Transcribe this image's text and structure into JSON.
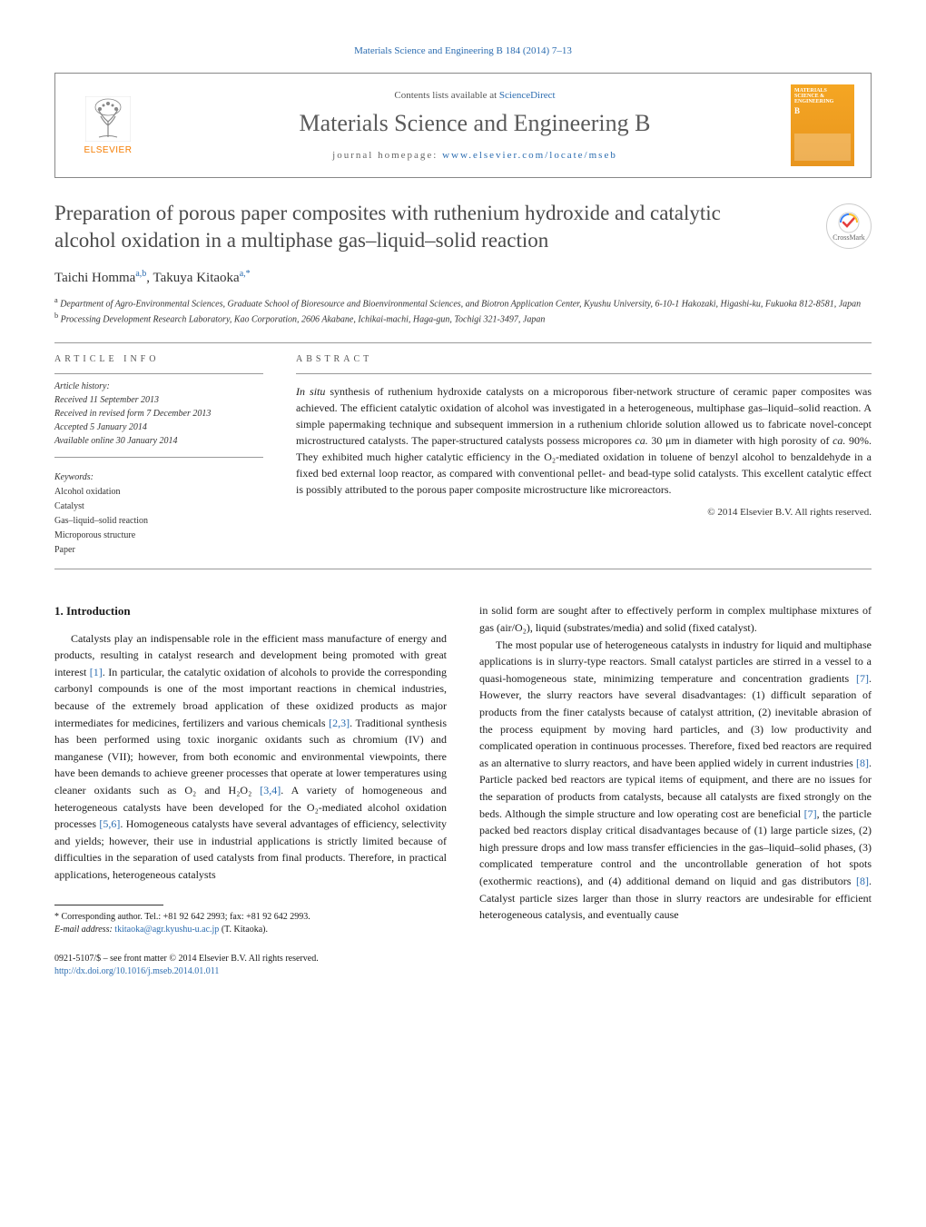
{
  "top_citation": "Materials Science and Engineering B 184 (2014) 7–13",
  "header": {
    "contents_prefix": "Contents lists available at ",
    "contents_link": "ScienceDirect",
    "journal_name": "Materials Science and Engineering B",
    "homepage_prefix": "journal homepage: ",
    "homepage_link": "www.elsevier.com/locate/mseb",
    "publisher_logo_text": "ELSEVIER",
    "cover_title": "MATERIALS SCIENCE & ENGINEERING",
    "cover_sub": "B"
  },
  "crossmark": "CrossMark",
  "article": {
    "title": "Preparation of porous paper composites with ruthenium hydroxide and catalytic alcohol oxidation in a multiphase gas–liquid–solid reaction",
    "authors_html": "Taichi Homma",
    "author1_sup": "a,b",
    "author2": "Takuya Kitaoka",
    "author2_sup": "a,*",
    "affiliation_a": "Department of Agro-Environmental Sciences, Graduate School of Bioresource and Bioenvironmental Sciences, and Biotron Application Center, Kyushu University, 6-10-1 Hakozaki, Higashi-ku, Fukuoka 812-8581, Japan",
    "affiliation_b": "Processing Development Research Laboratory, Kao Corporation, 2606 Akabane, Ichikai-machi, Haga-gun, Tochigi 321-3497, Japan"
  },
  "info": {
    "article_info_head": "article info",
    "abstract_head": "abstract",
    "history_label": "Article history:",
    "received": "Received 11 September 2013",
    "revised": "Received in revised form 7 December 2013",
    "accepted": "Accepted 5 January 2014",
    "online": "Available online 30 January 2014",
    "keywords_label": "Keywords:",
    "keywords": [
      "Alcohol oxidation",
      "Catalyst",
      "Gas–liquid–solid reaction",
      "Microporous structure",
      "Paper"
    ]
  },
  "abstract": "In situ synthesis of ruthenium hydroxide catalysts on a microporous fiber-network structure of ceramic paper composites was achieved. The efficient catalytic oxidation of alcohol was investigated in a heterogeneous, multiphase gas–liquid–solid reaction. A simple papermaking technique and subsequent immersion in a ruthenium chloride solution allowed us to fabricate novel-concept microstructured catalysts. The paper-structured catalysts possess micropores ca. 30 μm in diameter with high porosity of ca. 90%. They exhibited much higher catalytic efficiency in the O₂-mediated oxidation in toluene of benzyl alcohol to benzaldehyde in a fixed bed external loop reactor, as compared with conventional pellet- and bead-type solid catalysts. This excellent catalytic effect is possibly attributed to the porous paper composite microstructure like microreactors.",
  "copyright": "© 2014 Elsevier B.V. All rights reserved.",
  "body": {
    "section1_head": "1. Introduction",
    "col1_p1": "Catalysts play an indispensable role in the efficient mass manufacture of energy and products, resulting in catalyst research and development being promoted with great interest [1]. In particular, the catalytic oxidation of alcohols to provide the corresponding carbonyl compounds is one of the most important reactions in chemical industries, because of the extremely broad application of these oxidized products as major intermediates for medicines, fertilizers and various chemicals [2,3]. Traditional synthesis has been performed using toxic inorganic oxidants such as chromium (IV) and manganese (VII); however, from both economic and environmental viewpoints, there have been demands to achieve greener processes that operate at lower temperatures using cleaner oxidants such as O₂ and H₂O₂ [3,4]. A variety of homogeneous and heterogeneous catalysts have been developed for the O₂-mediated alcohol oxidation processes [5,6]. Homogeneous catalysts have several advantages of efficiency, selectivity and yields; however, their use in industrial applications is strictly limited because of difficulties in the separation of used catalysts from final products. Therefore, in practical applications, heterogeneous catalysts",
    "col2_p1": "in solid form are sought after to effectively perform in complex multiphase mixtures of gas (air/O₂), liquid (substrates/media) and solid (fixed catalyst).",
    "col2_p2": "The most popular use of heterogeneous catalysts in industry for liquid and multiphase applications is in slurry-type reactors. Small catalyst particles are stirred in a vessel to a quasi-homogeneous state, minimizing temperature and concentration gradients [7]. However, the slurry reactors have several disadvantages: (1) difficult separation of products from the finer catalysts because of catalyst attrition, (2) inevitable abrasion of the process equipment by moving hard particles, and (3) low productivity and complicated operation in continuous processes. Therefore, fixed bed reactors are required as an alternative to slurry reactors, and have been applied widely in current industries [8]. Particle packed bed reactors are typical items of equipment, and there are no issues for the separation of products from catalysts, because all catalysts are fixed strongly on the beds. Although the simple structure and low operating cost are beneficial [7], the particle packed bed reactors display critical disadvantages because of (1) large particle sizes, (2) high pressure drops and low mass transfer efficiencies in the gas–liquid–solid phases, (3) complicated temperature control and the uncontrollable generation of hot spots (exothermic reactions), and (4) additional demand on liquid and gas distributors [8]. Catalyst particle sizes larger than those in slurry reactors are undesirable for efficient heterogeneous catalysis, and eventually cause"
  },
  "footnote": {
    "corresponding": "Corresponding author. Tel.: +81 92 642 2993; fax: +81 92 642 2993.",
    "email_label": "E-mail address:",
    "email": "tkitaoka@agr.kyushu-u.ac.jp",
    "email_suffix": "(T. Kitaoka)."
  },
  "bottom": {
    "issn_line": "0921-5107/$ – see front matter © 2014 Elsevier B.V. All rights reserved.",
    "doi": "http://dx.doi.org/10.1016/j.mseb.2014.01.011"
  },
  "colors": {
    "link": "#2b6cb0",
    "elsevier_orange": "#f57c00",
    "journal_gray": "#5a5a5a",
    "text": "#1a1a1a",
    "border": "#888888"
  }
}
